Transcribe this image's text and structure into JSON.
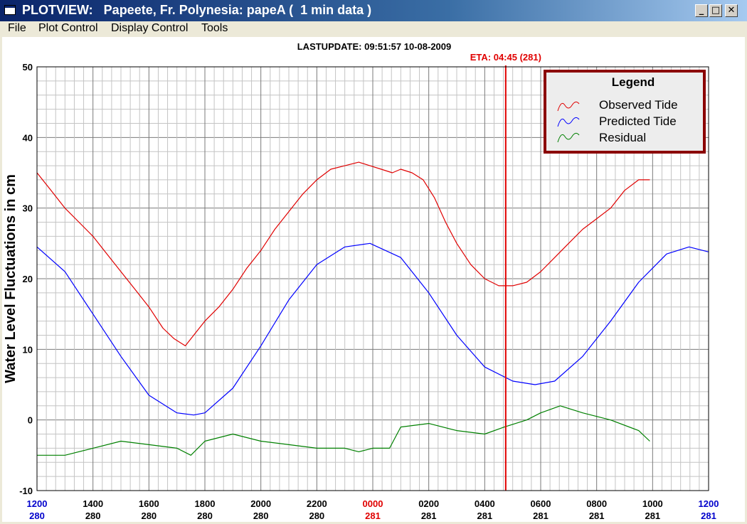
{
  "window": {
    "title": "PLOTVIEW:   Papeete, Fr. Polynesia: papeA (  1 min data )",
    "minimize_label": "_",
    "maximize_label": "□",
    "close_label": "✕"
  },
  "menu": [
    "File",
    "Plot Control",
    "Display Control",
    "Tools"
  ],
  "header": {
    "last_update": "LASTUPDATE: 09:51:57  10-08-2009",
    "eta": "ETA: 04:45 (281)"
  },
  "colors": {
    "observed": "#e00000",
    "predicted": "#0000ff",
    "residual": "#008000",
    "eta_line": "#e00000",
    "legend_border": "#8b0000",
    "day_blue": "#0000cc",
    "day_red": "#e00000"
  },
  "chart_data": {
    "type": "line",
    "title": "",
    "ylabel": "Water Level Fluctuations in cm",
    "xlabel": "",
    "ylim": [
      -10,
      50
    ],
    "yticks": [
      -10,
      0,
      10,
      20,
      30,
      40,
      50
    ],
    "grid": true,
    "legend": {
      "title": "Legend",
      "position": "top-right"
    },
    "x_range_hours": [
      0,
      24
    ],
    "x_ticks": [
      {
        "hour": 0,
        "time": "1200",
        "day": "280",
        "color": "blue"
      },
      {
        "hour": 2,
        "time": "1400",
        "day": "280",
        "color": "black"
      },
      {
        "hour": 4,
        "time": "1600",
        "day": "280",
        "color": "black"
      },
      {
        "hour": 6,
        "time": "1800",
        "day": "280",
        "color": "black"
      },
      {
        "hour": 8,
        "time": "2000",
        "day": "280",
        "color": "black"
      },
      {
        "hour": 10,
        "time": "2200",
        "day": "280",
        "color": "black"
      },
      {
        "hour": 12,
        "time": "0000",
        "day": "281",
        "color": "red"
      },
      {
        "hour": 14,
        "time": "0200",
        "day": "281",
        "color": "black"
      },
      {
        "hour": 16,
        "time": "0400",
        "day": "281",
        "color": "black"
      },
      {
        "hour": 18,
        "time": "0600",
        "day": "281",
        "color": "black"
      },
      {
        "hour": 20,
        "time": "0800",
        "day": "281",
        "color": "black"
      },
      {
        "hour": 22,
        "time": "1000",
        "day": "281",
        "color": "black"
      },
      {
        "hour": 24,
        "time": "1200",
        "day": "281",
        "color": "blue"
      }
    ],
    "eta_hour": 16.75,
    "series": [
      {
        "name": "Observed Tide",
        "x": [
          0,
          0.5,
          1,
          1.5,
          2,
          2.5,
          3,
          3.5,
          4,
          4.5,
          4.9,
          5.3,
          5.7,
          6,
          6.5,
          7,
          7.5,
          8,
          8.5,
          9,
          9.5,
          10,
          10.5,
          11,
          11.5,
          11.9,
          12.3,
          12.7,
          13,
          13.4,
          13.8,
          14.2,
          14.6,
          15,
          15.5,
          16,
          16.5,
          17,
          17.5,
          18,
          18.5,
          19,
          19.5,
          20,
          20.5,
          21,
          21.5,
          21.9
        ],
        "y": [
          35,
          32.5,
          30,
          28,
          26,
          23.5,
          21,
          18.5,
          16,
          13,
          11.5,
          10.5,
          12.5,
          14,
          16,
          18.5,
          21.5,
          24,
          27,
          29.5,
          32,
          34,
          35.5,
          36,
          36.5,
          36,
          35.5,
          35,
          35.5,
          35,
          34,
          31.5,
          28,
          25,
          22,
          20,
          19,
          19,
          19.5,
          21,
          23,
          25,
          27,
          28.5,
          30,
          32.5,
          34,
          34
        ]
      },
      {
        "name": "Predicted Tide",
        "x": [
          0,
          1,
          2,
          3,
          4,
          5,
          5.6,
          6,
          7,
          8,
          9,
          10,
          11,
          11.9,
          13,
          14,
          15,
          16,
          17,
          17.8,
          18.5,
          19.5,
          20.5,
          21.5,
          22.5,
          23.3,
          24
        ],
        "y": [
          24.5,
          21,
          15,
          9,
          3.5,
          1,
          0.7,
          1,
          4.5,
          10.5,
          17,
          22,
          24.5,
          25,
          23,
          18,
          12,
          7.5,
          5.5,
          5,
          5.5,
          9,
          14,
          19.5,
          23.5,
          24.5,
          23.8
        ]
      },
      {
        "name": "Residual",
        "x": [
          0,
          1,
          2,
          3,
          4,
          5,
          5.5,
          6,
          7,
          8,
          9,
          10,
          11,
          11.5,
          12,
          12.6,
          13,
          14,
          15,
          16,
          16.7,
          17.5,
          18,
          18.7,
          19.5,
          20.5,
          21.5,
          21.9
        ],
        "y": [
          -5,
          -5,
          -4,
          -3,
          -3.5,
          -4,
          -5,
          -3,
          -2,
          -3,
          -3.5,
          -4,
          -4,
          -4.5,
          -4,
          -4,
          -1,
          -0.5,
          -1.5,
          -2,
          -1,
          0,
          1,
          2,
          1,
          0,
          -1.5,
          -3
        ]
      }
    ]
  }
}
